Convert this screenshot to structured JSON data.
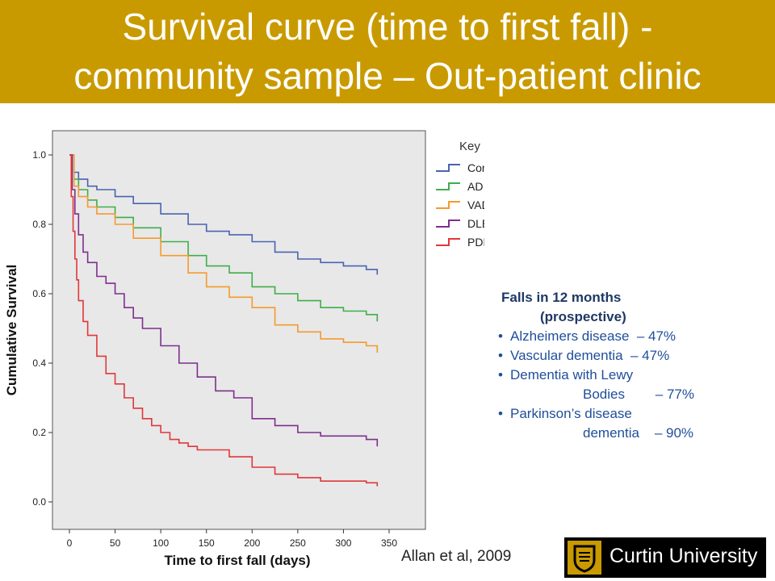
{
  "slide": {
    "title_line_1": "Survival curve (time to first fall) -",
    "title_line_2": "community sample – Out-patient clinic",
    "citation": "Allan et al, 2009",
    "logo_text": "Curtin University",
    "accent_color": "#c99a00"
  },
  "stats": {
    "heading_line_1": "Falls in 12 months",
    "heading_line_2": "(prospective)",
    "items": [
      {
        "bullet": "•",
        "text": "Alzheimers disease  – 47%"
      },
      {
        "bullet": "•",
        "text": "Vascular dementia  – 47%"
      },
      {
        "bullet": "•",
        "text": "Dementia with Lewy",
        "cont": "Bodies        – 77%"
      },
      {
        "bullet": "•",
        "text": "Parkinson’s disease",
        "cont": "dementia    – 90%"
      }
    ]
  },
  "chart_data": {
    "type": "line",
    "xlabel": "Time to first fall (days)",
    "ylabel": "Cumulative Survival",
    "xlim": [
      0,
      350
    ],
    "ylim": [
      0.0,
      1.0
    ],
    "x_ticks": [
      0,
      50,
      100,
      150,
      200,
      250,
      300,
      350
    ],
    "y_ticks": [
      "0.0",
      "0.2",
      "0.4",
      "0.6",
      "0.8",
      "1.0"
    ],
    "step": true,
    "legend_title": "Key",
    "legend_position": "top-right (outside plot)",
    "plot_background": "#e8e8e8",
    "series": [
      {
        "name": "Control",
        "color": "#4a62b3",
        "x": [
          0,
          5,
          10,
          20,
          30,
          50,
          70,
          100,
          130,
          150,
          175,
          200,
          225,
          250,
          275,
          300,
          325,
          337
        ],
        "y": [
          1.0,
          0.95,
          0.93,
          0.91,
          0.9,
          0.88,
          0.86,
          0.83,
          0.8,
          0.78,
          0.77,
          0.75,
          0.72,
          0.7,
          0.69,
          0.68,
          0.67,
          0.655
        ]
      },
      {
        "name": "AD",
        "color": "#3fae49",
        "x": [
          0,
          5,
          10,
          20,
          30,
          50,
          70,
          100,
          130,
          150,
          175,
          200,
          225,
          250,
          275,
          300,
          325,
          337
        ],
        "y": [
          1.0,
          0.93,
          0.9,
          0.87,
          0.85,
          0.82,
          0.79,
          0.75,
          0.71,
          0.68,
          0.66,
          0.62,
          0.6,
          0.58,
          0.56,
          0.55,
          0.54,
          0.52
        ]
      },
      {
        "name": "VAD",
        "color": "#f59a2c",
        "x": [
          0,
          5,
          10,
          20,
          30,
          50,
          70,
          100,
          130,
          150,
          175,
          200,
          225,
          250,
          275,
          300,
          325,
          337
        ],
        "y": [
          1.0,
          0.91,
          0.88,
          0.85,
          0.83,
          0.8,
          0.76,
          0.71,
          0.66,
          0.62,
          0.59,
          0.56,
          0.51,
          0.49,
          0.47,
          0.46,
          0.45,
          0.43
        ]
      },
      {
        "name": "DLB",
        "color": "#7e2f8e",
        "x": [
          0,
          3,
          6,
          10,
          15,
          20,
          30,
          40,
          50,
          60,
          70,
          80,
          100,
          120,
          140,
          160,
          180,
          200,
          225,
          250,
          275,
          300,
          325,
          337
        ],
        "y": [
          1.0,
          0.9,
          0.83,
          0.77,
          0.72,
          0.69,
          0.65,
          0.63,
          0.6,
          0.56,
          0.53,
          0.5,
          0.45,
          0.4,
          0.36,
          0.32,
          0.3,
          0.24,
          0.22,
          0.2,
          0.19,
          0.19,
          0.18,
          0.16
        ]
      },
      {
        "name": "PDD",
        "color": "#e0373a",
        "x": [
          0,
          2,
          4,
          6,
          8,
          10,
          15,
          20,
          30,
          40,
          50,
          60,
          70,
          80,
          90,
          100,
          110,
          120,
          130,
          140,
          150,
          175,
          200,
          225,
          250,
          275,
          300,
          325,
          337
        ],
        "y": [
          1.0,
          0.88,
          0.78,
          0.7,
          0.64,
          0.58,
          0.52,
          0.48,
          0.42,
          0.37,
          0.34,
          0.3,
          0.27,
          0.24,
          0.22,
          0.2,
          0.18,
          0.17,
          0.16,
          0.15,
          0.15,
          0.13,
          0.1,
          0.08,
          0.07,
          0.06,
          0.06,
          0.055,
          0.045
        ]
      }
    ]
  }
}
